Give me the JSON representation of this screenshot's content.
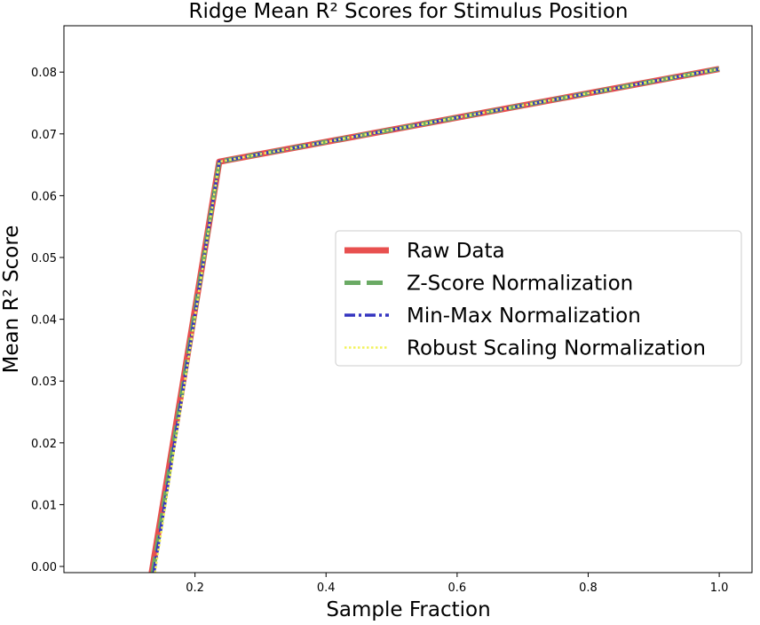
{
  "chart_data": {
    "type": "line",
    "title": "Ridge Mean R² Scores for Stimulus Position",
    "xlabel": "Sample Fraction",
    "ylabel": "Mean R² Score",
    "xlim": [
      0.0,
      1.05
    ],
    "ylim": [
      -0.001,
      0.0875
    ],
    "xticks": [
      0.2,
      0.4,
      0.6,
      0.8,
      1.0
    ],
    "xtick_labels": [
      "0.2",
      "0.4",
      "0.6",
      "0.8",
      "1.0"
    ],
    "yticks": [
      0.0,
      0.01,
      0.02,
      0.03,
      0.04,
      0.05,
      0.06,
      0.07,
      0.08
    ],
    "ytick_labels": [
      "0.00",
      "0.01",
      "0.02",
      "0.03",
      "0.04",
      "0.05",
      "0.06",
      "0.07",
      "0.08"
    ],
    "grid": false,
    "legend_position": "center-right",
    "series": [
      {
        "name": "Raw Data",
        "color": "#e8504f",
        "style": "solid",
        "x": [
          0.134,
          0.237,
          1.0
        ],
        "y": [
          -0.001,
          0.0655,
          0.0805
        ]
      },
      {
        "name": "Z-Score Normalization",
        "color": "#6aaa64",
        "style": "dashed",
        "x": [
          0.134,
          0.237,
          1.0
        ],
        "y": [
          -0.001,
          0.0655,
          0.0805
        ]
      },
      {
        "name": "Min-Max Normalization",
        "color": "#3636c0",
        "style": "dashdot",
        "x": [
          0.134,
          0.237,
          1.0
        ],
        "y": [
          -0.001,
          0.0655,
          0.0805
        ]
      },
      {
        "name": "Robust Scaling Normalization",
        "color": "#f2f25a",
        "style": "dotted",
        "x": [
          0.134,
          0.237,
          1.0
        ],
        "y": [
          -0.001,
          0.0655,
          0.0805
        ]
      }
    ]
  }
}
